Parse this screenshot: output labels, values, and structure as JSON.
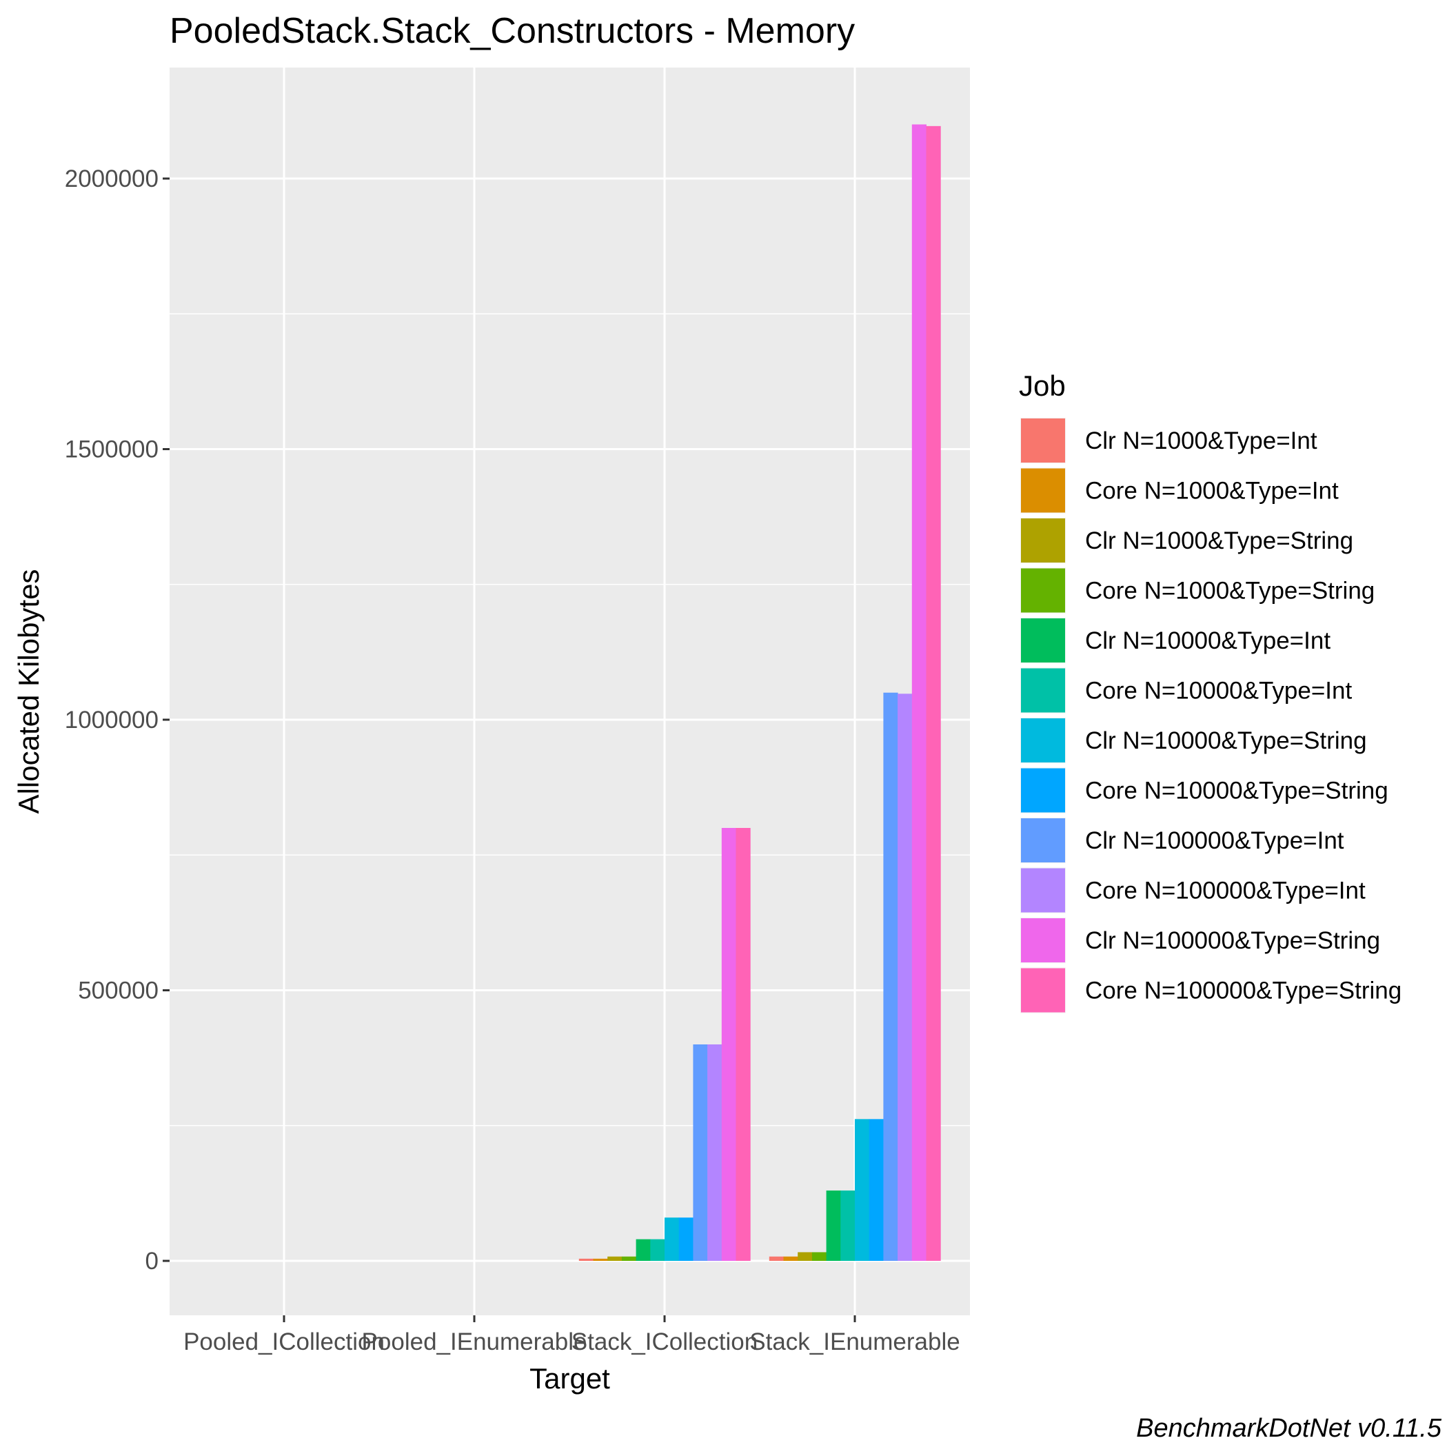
{
  "chart_data": {
    "type": "bar",
    "title": "PooledStack.Stack_Constructors - Memory",
    "xlabel": "Target",
    "ylabel": "Allocated  Kilobytes",
    "caption": "BenchmarkDotNet v0.11.5",
    "ylim": [
      -100000,
      2200000
    ],
    "yticks": [
      0,
      500000,
      1000000,
      1500000,
      2000000
    ],
    "ytick_labels": [
      "0",
      "500000",
      "1000000",
      "1500000",
      "2000000"
    ],
    "grid": true,
    "legend": {
      "title": "Job",
      "position": "right"
    },
    "categories": [
      "Pooled_ICollection",
      "Pooled_IEnumerable",
      "Stack_ICollection",
      "Stack_IEnumerable"
    ],
    "series": [
      {
        "name": "Clr N=1000&Type=Int",
        "color": "#F8766D",
        "values": [
          0,
          0,
          4000,
          8000
        ]
      },
      {
        "name": "Core N=1000&Type=Int",
        "color": "#DB8E00",
        "values": [
          0,
          0,
          4000,
          8000
        ]
      },
      {
        "name": "Clr N=1000&Type=String",
        "color": "#AEA200",
        "values": [
          0,
          0,
          8000,
          16000
        ]
      },
      {
        "name": "Core N=1000&Type=String",
        "color": "#64B200",
        "values": [
          0,
          0,
          8000,
          16000
        ]
      },
      {
        "name": "Clr N=10000&Type=Int",
        "color": "#00BD5C",
        "values": [
          0,
          0,
          40000,
          130000
        ]
      },
      {
        "name": "Core N=10000&Type=Int",
        "color": "#00C1A7",
        "values": [
          0,
          0,
          40000,
          130000
        ]
      },
      {
        "name": "Clr N=10000&Type=String",
        "color": "#00BADE",
        "values": [
          0,
          0,
          80000,
          262000
        ]
      },
      {
        "name": "Core N=10000&Type=String",
        "color": "#00A6FF",
        "values": [
          0,
          0,
          80000,
          262000
        ]
      },
      {
        "name": "Clr N=100000&Type=Int",
        "color": "#619CFF",
        "values": [
          0,
          0,
          400000,
          1050000
        ]
      },
      {
        "name": "Core N=100000&Type=Int",
        "color": "#B385FF",
        "values": [
          0,
          0,
          400000,
          1048000
        ]
      },
      {
        "name": "Clr N=100000&Type=String",
        "color": "#EF67EB",
        "values": [
          0,
          0,
          800000,
          2100000
        ]
      },
      {
        "name": "Core N=100000&Type=String",
        "color": "#FF63B6",
        "values": [
          0,
          0,
          800000,
          2097000
        ]
      }
    ]
  }
}
